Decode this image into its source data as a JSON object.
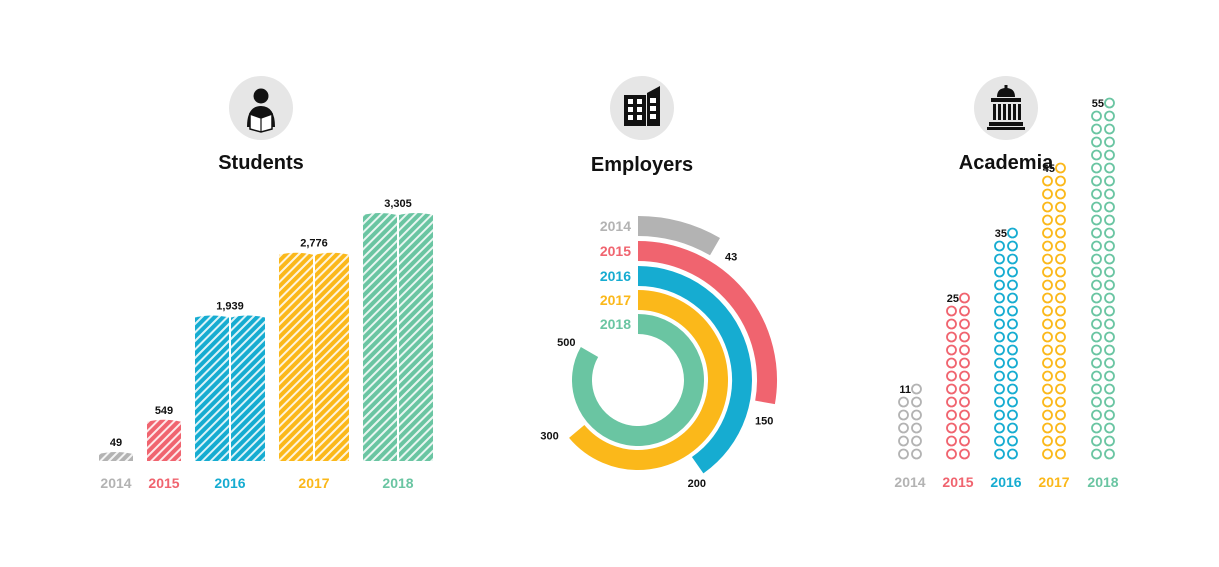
{
  "colors": {
    "2014": "#b3b3b3",
    "2015": "#f0646f",
    "2016": "#16acd1",
    "2017": "#fbb81a",
    "2018": "#6ac5a2",
    "icon_circle": "#e6e6e6"
  },
  "panels": {
    "students": {
      "title": "Students",
      "icon": "student-reading-icon"
    },
    "employers": {
      "title": "Employers",
      "icon": "office-building-icon"
    },
    "academia": {
      "title": "Academia",
      "icon": "university-building-icon"
    }
  },
  "chart_data": [
    {
      "type": "bar",
      "title": "Students",
      "categories": [
        "2014",
        "2015",
        "2016",
        "2017",
        "2018"
      ],
      "values": [
        49,
        549,
        1939,
        2776,
        3305
      ],
      "labels": [
        "49",
        "549",
        "1,939",
        "2,776",
        "3,305"
      ],
      "ylim": [
        0,
        3305
      ],
      "grid": false
    },
    {
      "type": "radial-bar",
      "title": "Employers",
      "categories": [
        "2014",
        "2015",
        "2016",
        "2017",
        "2018"
      ],
      "values": [
        43,
        150,
        200,
        300,
        500
      ],
      "labels": [
        "43",
        "150",
        "200",
        "300",
        "500"
      ],
      "grid": false
    },
    {
      "type": "pictogram",
      "title": "Academia",
      "categories": [
        "2014",
        "2015",
        "2016",
        "2017",
        "2018"
      ],
      "values": [
        11,
        25,
        35,
        45,
        55
      ],
      "labels": [
        "11",
        "25",
        "35",
        "45",
        "55"
      ],
      "grid": false
    }
  ]
}
